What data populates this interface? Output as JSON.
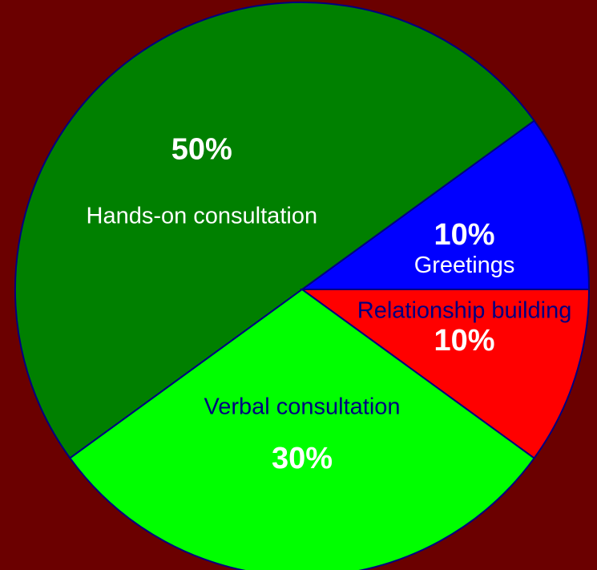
{
  "chart_data": {
    "type": "pie",
    "categories": [
      "Greetings",
      "Hands-on consultation",
      "Verbal consultation",
      "Relationship building"
    ],
    "values": [
      10,
      50,
      30,
      10
    ],
    "value_labels": [
      "10%",
      "50%",
      "30%",
      "10%"
    ],
    "colors": [
      "#0000ff",
      "#008000",
      "#00ff00",
      "#ff0000"
    ]
  }
}
